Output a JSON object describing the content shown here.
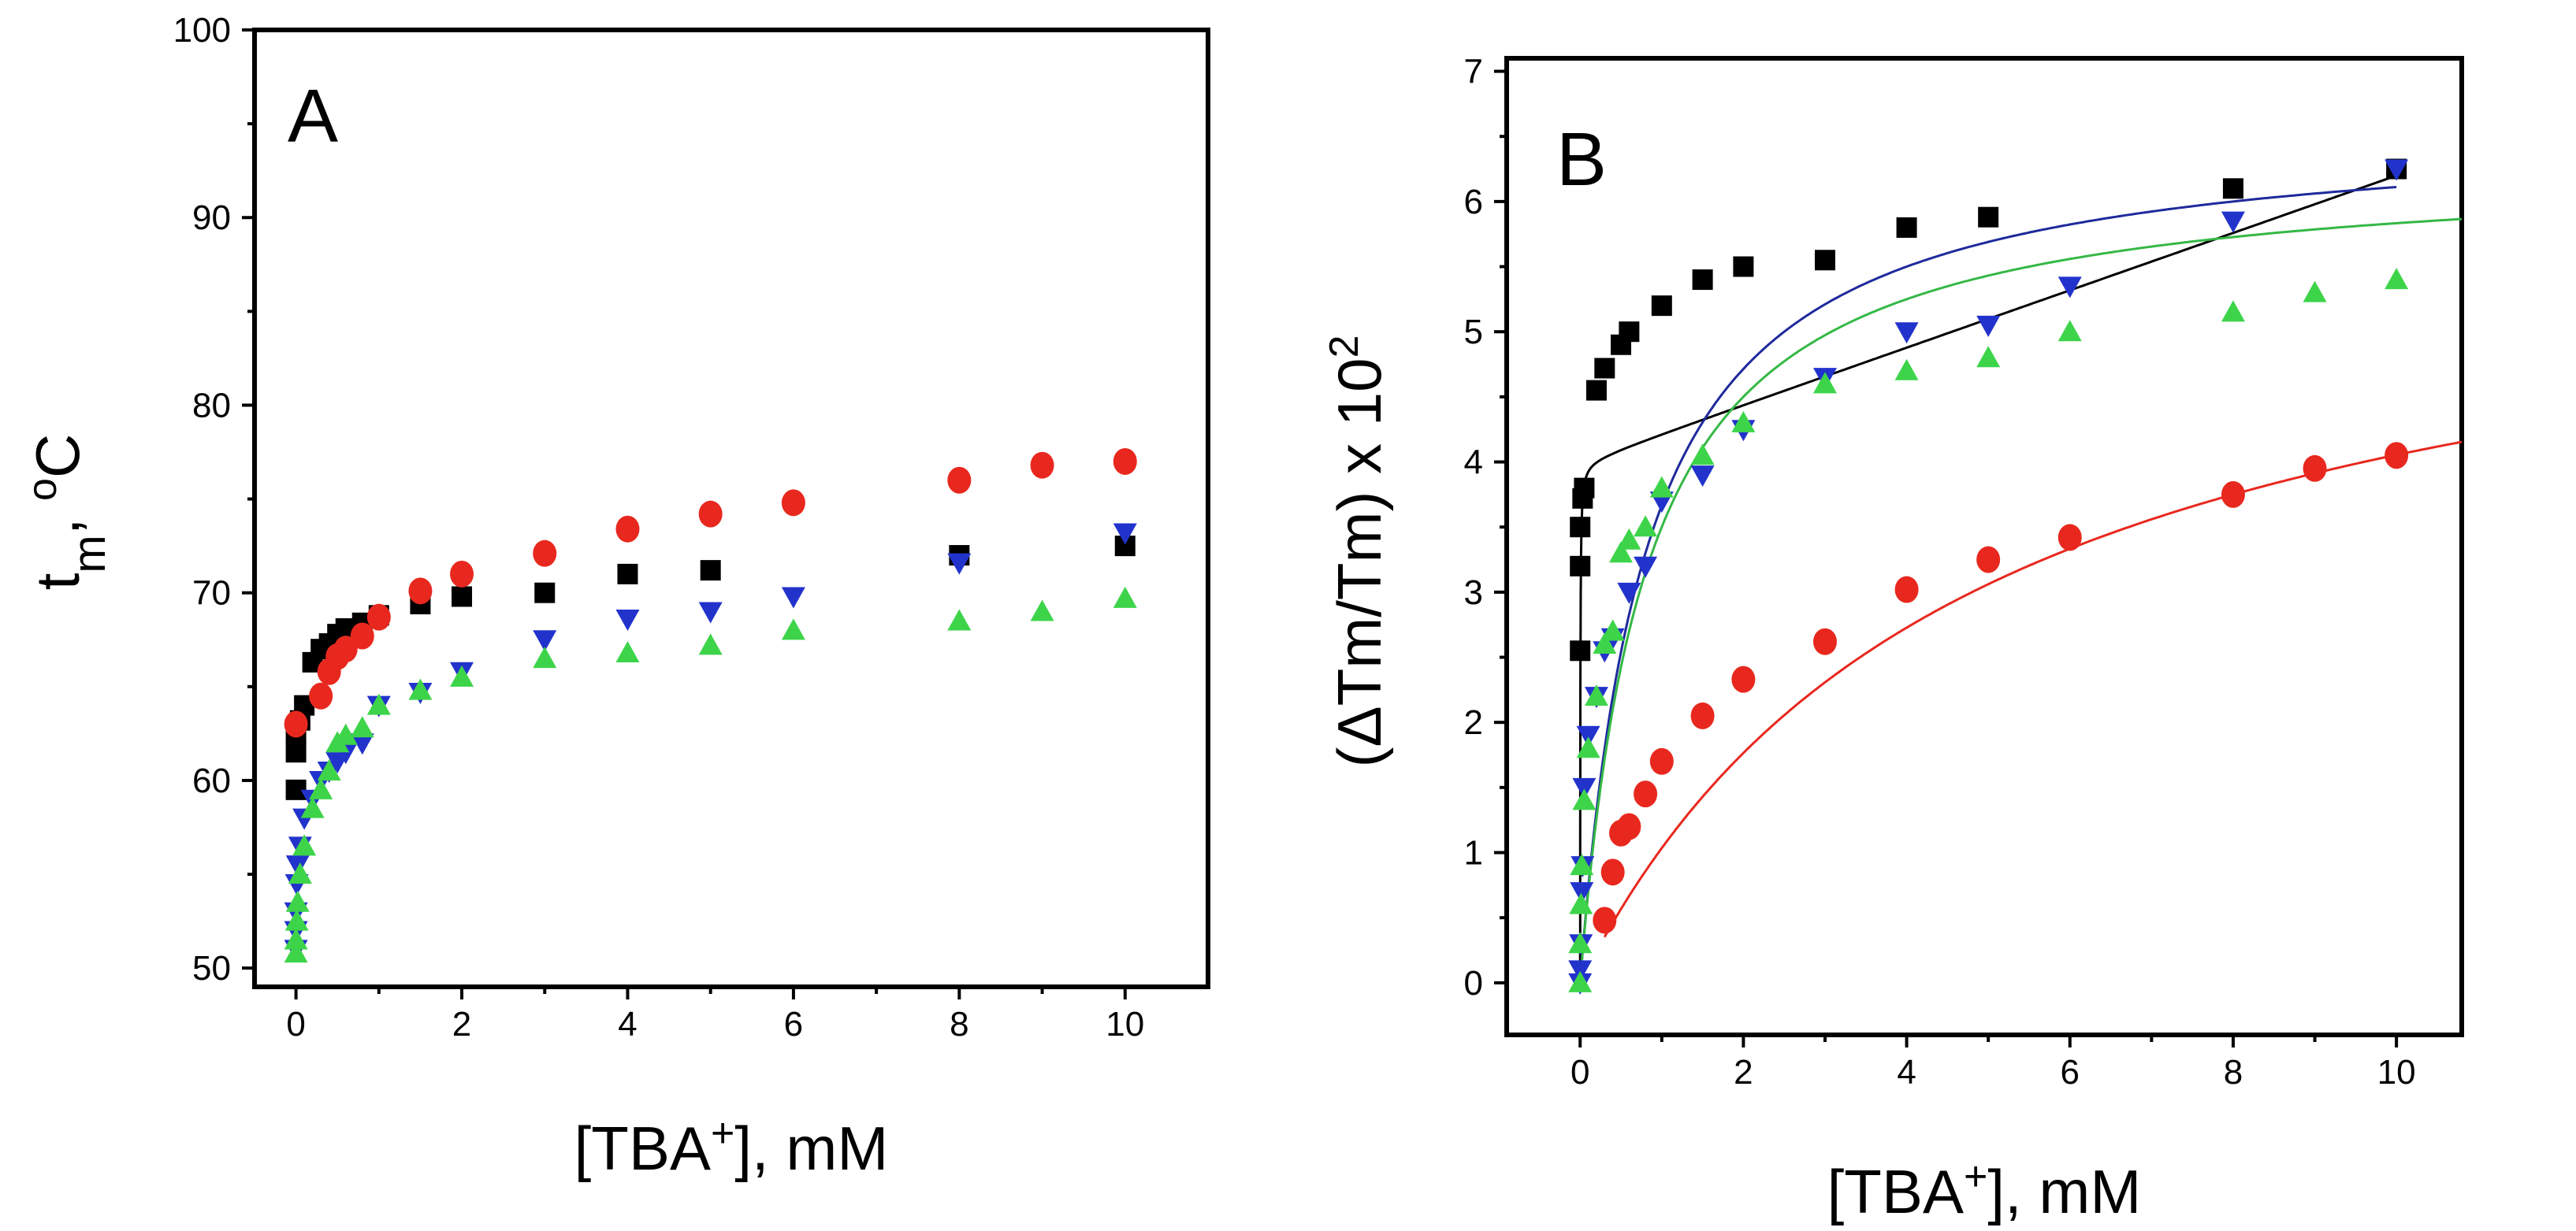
{
  "chart_data": [
    {
      "type": "scatter",
      "panel_label": "A",
      "xlabel": "[TBA+], mM",
      "ylabel": "tm, °C",
      "xlim": [
        -0.5,
        11
      ],
      "ylim": [
        49,
        100
      ],
      "x_ticks": [
        0,
        2,
        4,
        6,
        8,
        10
      ],
      "y_ticks": [
        50,
        60,
        70,
        80,
        90,
        100
      ],
      "grid": false,
      "legend": "none",
      "series": [
        {
          "marker": "square",
          "color": "#000000",
          "points": [
            [
              0,
              59.5
            ],
            [
              0,
              61.5
            ],
            [
              0,
              62.5
            ],
            [
              0.05,
              63.2
            ],
            [
              0.1,
              64
            ],
            [
              0.2,
              66.3
            ],
            [
              0.3,
              67
            ],
            [
              0.4,
              67.3
            ],
            [
              0.5,
              67.8
            ],
            [
              0.6,
              68.1
            ],
            [
              0.8,
              68.4
            ],
            [
              1,
              68.8
            ],
            [
              1.5,
              69.4
            ],
            [
              2,
              69.8
            ],
            [
              3,
              70
            ],
            [
              4,
              71
            ],
            [
              5,
              71.2
            ],
            [
              8,
              72
            ],
            [
              10,
              72.5
            ]
          ]
        },
        {
          "marker": "circle",
          "color": "#e8281e",
          "points": [
            [
              0,
              63
            ],
            [
              0.3,
              64.5
            ],
            [
              0.4,
              65.8
            ],
            [
              0.5,
              66.6
            ],
            [
              0.6,
              67
            ],
            [
              0.8,
              67.7
            ],
            [
              1,
              68.7
            ],
            [
              1.5,
              70.1
            ],
            [
              2,
              71
            ],
            [
              3,
              72.1
            ],
            [
              4,
              73.4
            ],
            [
              5,
              74.2
            ],
            [
              6,
              74.8
            ],
            [
              8,
              76
            ],
            [
              9,
              76.8
            ],
            [
              10,
              77
            ]
          ]
        },
        {
          "marker": "triangle-down",
          "color": "#2233cc",
          "points": [
            [
              0,
              51
            ],
            [
              0,
              52
            ],
            [
              0,
              53
            ],
            [
              0.01,
              54.5
            ],
            [
              0.02,
              55.5
            ],
            [
              0.05,
              56.5
            ],
            [
              0.1,
              58
            ],
            [
              0.2,
              59
            ],
            [
              0.3,
              60
            ],
            [
              0.4,
              60.5
            ],
            [
              0.5,
              61
            ],
            [
              0.6,
              61.5
            ],
            [
              0.8,
              62
            ],
            [
              1,
              64
            ],
            [
              1.5,
              64.7
            ],
            [
              2,
              65.8
            ],
            [
              3,
              67.5
            ],
            [
              4,
              68.6
            ],
            [
              5,
              69
            ],
            [
              6,
              69.8
            ],
            [
              8,
              71.6
            ],
            [
              10,
              73.2
            ]
          ]
        },
        {
          "marker": "triangle-up",
          "color": "#3dd44a",
          "points": [
            [
              0,
              50.8
            ],
            [
              0,
              51.5
            ],
            [
              0.01,
              52.5
            ],
            [
              0.02,
              53.5
            ],
            [
              0.05,
              55
            ],
            [
              0.1,
              56.5
            ],
            [
              0.2,
              58.5
            ],
            [
              0.3,
              59.5
            ],
            [
              0.4,
              60.5
            ],
            [
              0.5,
              62
            ],
            [
              0.6,
              62.4
            ],
            [
              0.8,
              62.8
            ],
            [
              1,
              64
            ],
            [
              1.5,
              64.8
            ],
            [
              2,
              65.5
            ],
            [
              3,
              66.5
            ],
            [
              4,
              66.8
            ],
            [
              5,
              67.2
            ],
            [
              6,
              68
            ],
            [
              8,
              68.5
            ],
            [
              9,
              69
            ],
            [
              10,
              69.7
            ]
          ]
        }
      ]
    },
    {
      "type": "scatter",
      "panel_label": "B",
      "xlabel": "[TBA+], mM",
      "ylabel": "(ΔTm/Tm) x 10²",
      "xlim": [
        -0.9,
        10.8
      ],
      "ylim": [
        -0.4,
        7.1
      ],
      "x_ticks": [
        0,
        2,
        4,
        6,
        8,
        10
      ],
      "y_ticks": [
        0,
        1,
        2,
        3,
        4,
        5,
        6,
        7
      ],
      "grid": false,
      "legend": "none",
      "series": [
        {
          "marker": "square",
          "color": "#000000",
          "fit": "black",
          "points": [
            [
              0,
              2.55
            ],
            [
              0,
              3.2
            ],
            [
              0,
              3.5
            ],
            [
              0.03,
              3.72
            ],
            [
              0.05,
              3.8
            ],
            [
              0.2,
              4.55
            ],
            [
              0.3,
              4.72
            ],
            [
              0.5,
              4.9
            ],
            [
              0.6,
              5
            ],
            [
              1,
              5.2
            ],
            [
              1.5,
              5.4
            ],
            [
              2,
              5.5
            ],
            [
              3,
              5.55
            ],
            [
              4,
              5.8
            ],
            [
              5,
              5.88
            ],
            [
              8,
              6.1
            ],
            [
              10,
              6.25
            ]
          ]
        },
        {
          "marker": "triangle-down",
          "color": "#2233cc",
          "fit": "blue",
          "points": [
            [
              0,
              0
            ],
            [
              0,
              0.1
            ],
            [
              0.01,
              0.3
            ],
            [
              0.02,
              0.7
            ],
            [
              0.03,
              0.9
            ],
            [
              0.05,
              1.5
            ],
            [
              0.1,
              1.9
            ],
            [
              0.2,
              2.2
            ],
            [
              0.3,
              2.55
            ],
            [
              0.4,
              2.65
            ],
            [
              0.6,
              3
            ],
            [
              0.8,
              3.2
            ],
            [
              1,
              3.7
            ],
            [
              1.5,
              3.9
            ],
            [
              2,
              4.25
            ],
            [
              3,
              4.65
            ],
            [
              4,
              5
            ],
            [
              5,
              5.05
            ],
            [
              6,
              5.35
            ],
            [
              8,
              5.85
            ],
            [
              10,
              6.25
            ]
          ]
        },
        {
          "marker": "triangle-up",
          "color": "#3dd44a",
          "fit": "green",
          "points": [
            [
              0,
              0
            ],
            [
              0,
              0.3
            ],
            [
              0.01,
              0.6
            ],
            [
              0.02,
              0.9
            ],
            [
              0.05,
              1.4
            ],
            [
              0.1,
              1.8
            ],
            [
              0.2,
              2.2
            ],
            [
              0.3,
              2.6
            ],
            [
              0.4,
              2.7
            ],
            [
              0.5,
              3.3
            ],
            [
              0.6,
              3.4
            ],
            [
              0.8,
              3.5
            ],
            [
              1,
              3.8
            ],
            [
              1.5,
              4.05
            ],
            [
              2,
              4.3
            ],
            [
              3,
              4.6
            ],
            [
              4,
              4.7
            ],
            [
              5,
              4.8
            ],
            [
              6,
              5
            ],
            [
              8,
              5.15
            ],
            [
              9,
              5.3
            ],
            [
              10,
              5.4
            ]
          ]
        },
        {
          "marker": "circle",
          "color": "#e8281e",
          "fit": "red",
          "points": [
            [
              0.3,
              0.48
            ],
            [
              0.4,
              0.85
            ],
            [
              0.5,
              1.15
            ],
            [
              0.6,
              1.2
            ],
            [
              0.8,
              1.45
            ],
            [
              1,
              1.7
            ],
            [
              1.5,
              2.05
            ],
            [
              2,
              2.33
            ],
            [
              3,
              2.62
            ],
            [
              4,
              3.02
            ],
            [
              5,
              3.25
            ],
            [
              6,
              3.42
            ],
            [
              8,
              3.75
            ],
            [
              9,
              3.95
            ],
            [
              10,
              4.05
            ]
          ]
        }
      ],
      "fit_curves": [
        {
          "color": "#000000",
          "a": 4.0,
          "k": 0.0025,
          "b": 0.22
        },
        {
          "color": "#1e2a9c",
          "a": 6.6,
          "k": 0.8,
          "b": 0.0
        },
        {
          "color": "#35b846",
          "a": 6.3,
          "k": 0.8,
          "b": 0.0
        },
        {
          "color": "#e8281e",
          "a": 6.0,
          "k": 4.8,
          "b": 0.0
        }
      ]
    }
  ]
}
